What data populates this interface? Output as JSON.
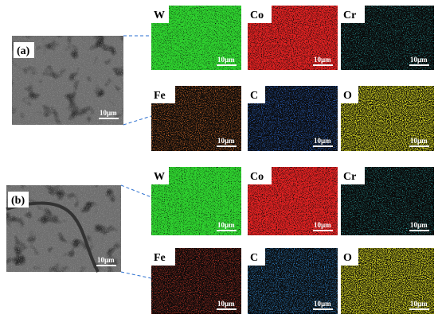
{
  "panels": [
    {
      "label": "(a)",
      "sem_scale": "10µm",
      "maps": [
        {
          "element": "W",
          "scale": "10µm",
          "color": "#2fd02f"
        },
        {
          "element": "Co",
          "scale": "10µm",
          "color": "#e02020"
        },
        {
          "element": "Cr",
          "scale": "10µm",
          "color": "#30c8c8"
        },
        {
          "element": "Fe",
          "scale": "10µm",
          "color": "#e0702a"
        },
        {
          "element": "C",
          "scale": "10µm",
          "color": "#3070e0"
        },
        {
          "element": "O",
          "scale": "10µm",
          "color": "#d8d820"
        }
      ]
    },
    {
      "label": "(b)",
      "sem_scale": "10µm",
      "maps": [
        {
          "element": "W",
          "scale": "10µm",
          "color": "#2fd02f"
        },
        {
          "element": "Co",
          "scale": "10µm",
          "color": "#e02020"
        },
        {
          "element": "Cr",
          "scale": "10µm",
          "color": "#30c8c8"
        },
        {
          "element": "Fe",
          "scale": "10µm",
          "color": "#d03a2a"
        },
        {
          "element": "C",
          "scale": "10µm",
          "color": "#3090e0"
        },
        {
          "element": "O",
          "scale": "10µm",
          "color": "#d8d820"
        }
      ]
    }
  ]
}
